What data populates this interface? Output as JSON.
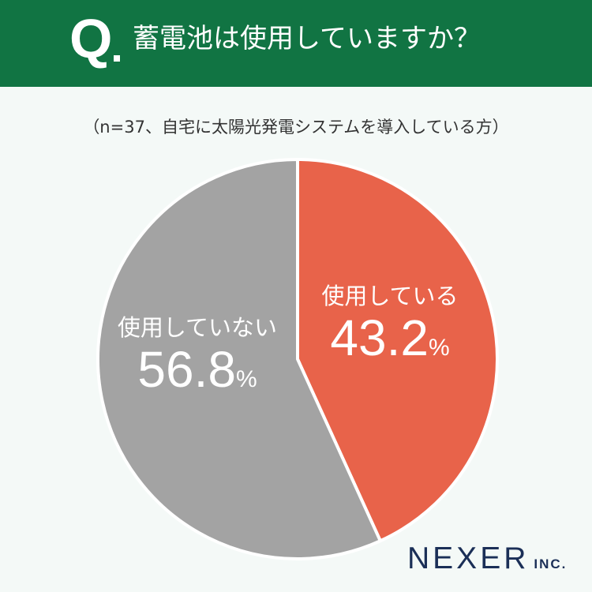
{
  "header": {
    "q_mark": "Q",
    "question": "蓄電池は使用していますか？"
  },
  "subtitle": "（n=37、自宅に太陽光発電システムを導入している方）",
  "chart_data": {
    "type": "pie",
    "title": "蓄電池は使用していますか？",
    "subtitle": "（n=37、自宅に太陽光発電システムを導入している方）",
    "unit": "%",
    "slices": [
      {
        "label": "使用している",
        "value": 43.2,
        "value_label": "43.2",
        "color": "#e8634a"
      },
      {
        "label": "使用していない",
        "value": 56.8,
        "value_label": "56.8",
        "color": "#a3a3a3"
      }
    ]
  },
  "logo": {
    "main": "NEXER",
    "sub": "INC.",
    "color": "#1b2f57"
  }
}
